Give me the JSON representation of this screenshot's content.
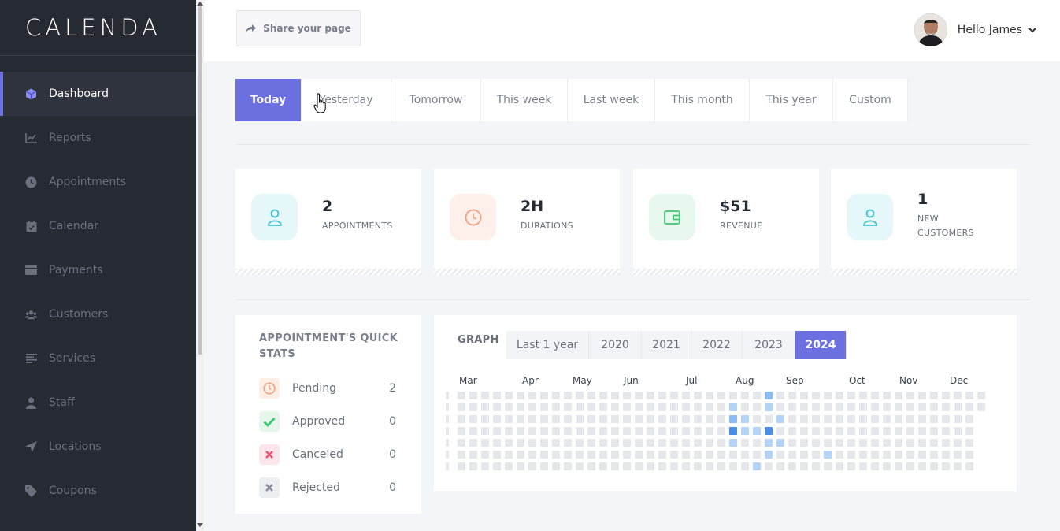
{
  "sidebar": {
    "logo": "CALENDA",
    "items": [
      {
        "label": "Dashboard",
        "icon": "cube-icon",
        "active": true
      },
      {
        "label": "Reports",
        "icon": "chart-line-icon"
      },
      {
        "label": "Appointments",
        "icon": "clock-icon"
      },
      {
        "label": "Calendar",
        "icon": "calendar-icon"
      },
      {
        "label": "Payments",
        "icon": "credit-card-icon"
      },
      {
        "label": "Customers",
        "icon": "users-icon"
      },
      {
        "label": "Services",
        "icon": "list-icon"
      },
      {
        "label": "Staff",
        "icon": "user-icon"
      },
      {
        "label": "Locations",
        "icon": "location-arrow-icon"
      },
      {
        "label": "Coupons",
        "icon": "tag-icon"
      }
    ]
  },
  "header": {
    "share_label": "Share your page",
    "greeting": "Hello James"
  },
  "date_tabs": [
    {
      "label": "Today",
      "active": true
    },
    {
      "label": "Yesterday"
    },
    {
      "label": "Tomorrow"
    },
    {
      "label": "This week"
    },
    {
      "label": "Last week"
    },
    {
      "label": "This month"
    },
    {
      "label": "This year"
    },
    {
      "label": "Custom"
    }
  ],
  "cards": [
    {
      "value": "2",
      "label": "APPOINTMENTS",
      "icon": "user-icon",
      "color": "#3fc3d6",
      "bg": "#e6f7fa"
    },
    {
      "value": "2H",
      "label": "DURATIONS",
      "icon": "clock-icon",
      "color": "#f0a27e",
      "bg": "#fdf0ea"
    },
    {
      "value": "$51",
      "label": "REVENUE",
      "icon": "wallet-icon",
      "color": "#3dc872",
      "bg": "#e8f8ee"
    },
    {
      "value": "1",
      "label": "NEW CUSTOMERS",
      "label_line1": "NEW",
      "label_line2": "CUSTOMERS",
      "icon": "user-icon",
      "color": "#3fc3d6",
      "bg": "#e6f7fa"
    }
  ],
  "quick_stats": {
    "title": "APPOINTMENT'S QUICK STATS",
    "title_line1": "APPOINTMENT'S QUICK",
    "title_line2": "STATS",
    "rows": [
      {
        "label": "Pending",
        "count": "2",
        "icon": "clock-icon",
        "color": "#f0a27e",
        "bg": "#fdeee6"
      },
      {
        "label": "Approved",
        "count": "0",
        "icon": "check-icon",
        "color": "#3dc872",
        "bg": "#e4f7ea"
      },
      {
        "label": "Canceled",
        "count": "0",
        "icon": "x-icon",
        "color": "#f0506e",
        "bg": "#fde6eb"
      },
      {
        "label": "Rejected",
        "count": "0",
        "icon": "x-icon",
        "color": "#8a8f9c",
        "bg": "#eceef2"
      }
    ]
  },
  "graph": {
    "title": "GRAPH",
    "tabs": [
      {
        "label": "Last 1 year"
      },
      {
        "label": "2020"
      },
      {
        "label": "2021"
      },
      {
        "label": "2022"
      },
      {
        "label": "2023"
      },
      {
        "label": "2024",
        "active": true
      }
    ],
    "months": [
      "Mar",
      "Apr",
      "May",
      "Jun",
      "Jul",
      "Aug",
      "Sep",
      "Oct",
      "Nov",
      "Dec"
    ],
    "colors": {
      "empty": "#e6e7ea",
      "light": "#b4d4f7",
      "mid": "#8cbcf3",
      "dark": "#4a8ee8"
    }
  }
}
